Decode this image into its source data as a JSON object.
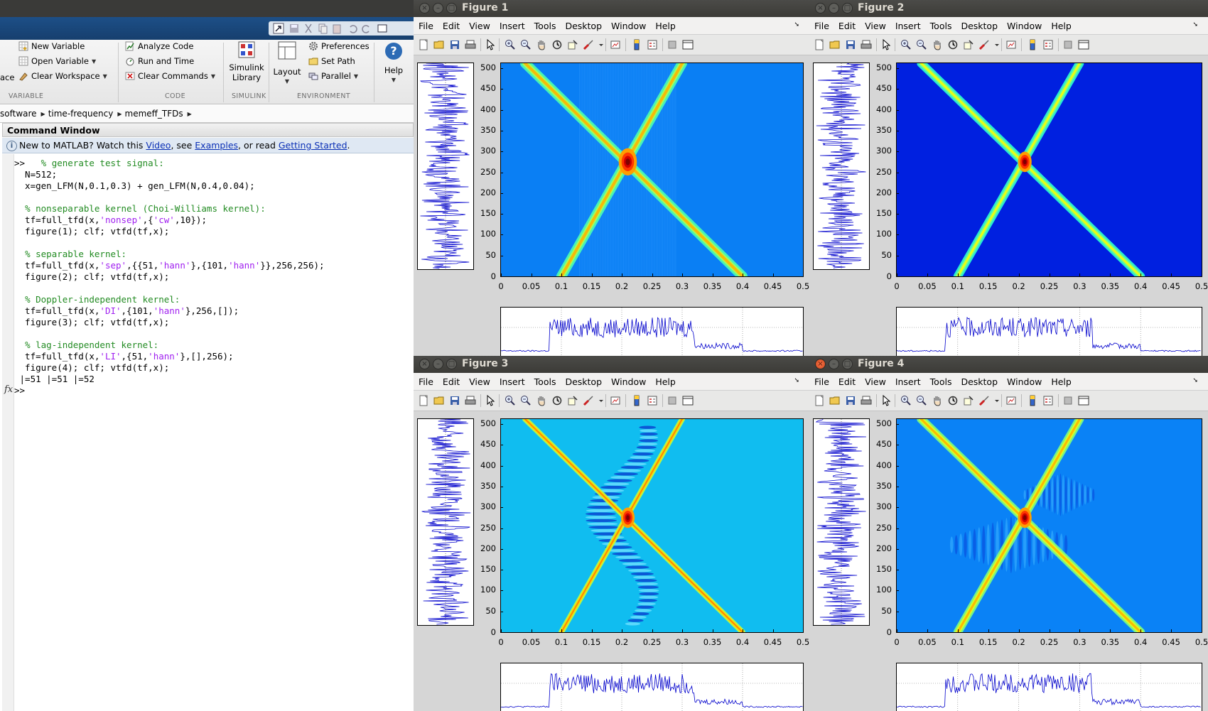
{
  "matlab": {
    "ribbon": {
      "variable": {
        "new_variable": "New Variable",
        "open_variable": "Open Variable",
        "clear_workspace": "Clear Workspace",
        "partial_left": "ace",
        "section": "VARIABLE"
      },
      "code": {
        "analyze_code": "Analyze Code",
        "run_and_time": "Run and Time",
        "clear_commands": "Clear Commands",
        "section": "CODE"
      },
      "simulink": {
        "line1": "Simulink",
        "line2": "Library",
        "section": "SIMULINK"
      },
      "environment": {
        "layout": "Layout",
        "preferences": "Preferences",
        "set_path": "Set Path",
        "parallel": "Parallel",
        "section": "ENVIRONMENT"
      },
      "help": {
        "label": "Help"
      }
    },
    "address": [
      "software",
      "time-frequency",
      "memeff_TFDs"
    ],
    "command_window": {
      "title": "Command Window",
      "info": {
        "prefix": "New to MATLAB? Watch this ",
        "video": "Video",
        "mid1": ", see ",
        "examples": "Examples",
        "mid2": ", or read ",
        "getting_started": "Getting Started",
        "suffix": "."
      },
      "lines": [
        [
          {
            "t": ">>   ",
            "c": ""
          },
          {
            "t": "% generate test signal:",
            "c": "cm"
          }
        ],
        [
          {
            "t": "  N=512;",
            "c": ""
          }
        ],
        [
          {
            "t": "  x=gen_LFM(N,0.1,0.3) + gen_LFM(N,0.4,0.04);",
            "c": ""
          }
        ],
        [
          {
            "t": "",
            "c": ""
          }
        ],
        [
          {
            "t": "  ",
            "c": ""
          },
          {
            "t": "% nonseparable kernel (Choi-Williams kernel):",
            "c": "cm"
          }
        ],
        [
          {
            "t": "  tf=full_tfd(x,",
            "c": ""
          },
          {
            "t": "'nonsep'",
            "c": "st"
          },
          {
            "t": ",{",
            "c": ""
          },
          {
            "t": "'cw'",
            "c": "st"
          },
          {
            "t": ",10});",
            "c": ""
          }
        ],
        [
          {
            "t": "  figure(1); clf; vtfd(tf,x);",
            "c": ""
          }
        ],
        [
          {
            "t": "",
            "c": ""
          }
        ],
        [
          {
            "t": "  ",
            "c": ""
          },
          {
            "t": "% separable kernel:",
            "c": "cm"
          }
        ],
        [
          {
            "t": "  tf=full_tfd(x,",
            "c": ""
          },
          {
            "t": "'sep'",
            "c": "st"
          },
          {
            "t": ",{{51,",
            "c": ""
          },
          {
            "t": "'hann'",
            "c": "st"
          },
          {
            "t": "},{101,",
            "c": ""
          },
          {
            "t": "'hann'",
            "c": "st"
          },
          {
            "t": "}},256,256);",
            "c": ""
          }
        ],
        [
          {
            "t": "  figure(2); clf; vtfd(tf,x);",
            "c": ""
          }
        ],
        [
          {
            "t": "",
            "c": ""
          }
        ],
        [
          {
            "t": "  ",
            "c": ""
          },
          {
            "t": "% Doppler-independent kernel:",
            "c": "cm"
          }
        ],
        [
          {
            "t": "  tf=full_tfd(x,",
            "c": ""
          },
          {
            "t": "'DI'",
            "c": "st"
          },
          {
            "t": ",{101,",
            "c": ""
          },
          {
            "t": "'hann'",
            "c": "st"
          },
          {
            "t": "},256,[]);",
            "c": ""
          }
        ],
        [
          {
            "t": "  figure(3); clf; vtfd(tf,x);",
            "c": ""
          }
        ],
        [
          {
            "t": "",
            "c": ""
          }
        ],
        [
          {
            "t": "  ",
            "c": ""
          },
          {
            "t": "% lag-independent kernel:",
            "c": "cm"
          }
        ],
        [
          {
            "t": "  tf=full_tfd(x,",
            "c": ""
          },
          {
            "t": "'LI'",
            "c": "st"
          },
          {
            "t": ",{51,",
            "c": ""
          },
          {
            "t": "'hann'",
            "c": "st"
          },
          {
            "t": "},[],256);",
            "c": ""
          }
        ],
        [
          {
            "t": "  figure(4); clf; vtfd(tf,x);",
            "c": ""
          }
        ],
        [
          {
            "t": " |=51 |=51 |=52",
            "c": ""
          }
        ],
        [
          {
            "t": ">>",
            "c": ""
          }
        ]
      ],
      "fx_label": "fx"
    }
  },
  "figure_menu": [
    "File",
    "Edit",
    "View",
    "Insert",
    "Tools",
    "Desktop",
    "Window",
    "Help"
  ],
  "figures": [
    {
      "id": 1,
      "title": "Figure 1",
      "active": false,
      "colormap": "jet",
      "background": "#0a7ff4",
      "kernel": "nonseparable (Choi-Williams)"
    },
    {
      "id": 2,
      "title": "Figure 2",
      "active": false,
      "colormap": "jet",
      "background": "#0020e0",
      "kernel": "separable"
    },
    {
      "id": 3,
      "title": "Figure 3",
      "active": false,
      "colormap": "jet",
      "background": "#10bdf0",
      "kernel": "Doppler-independent"
    },
    {
      "id": 4,
      "title": "Figure 4",
      "active": true,
      "colormap": "jet",
      "background": "#0a82f6",
      "kernel": "lag-independent"
    }
  ],
  "chart_data": {
    "type": "heatmap",
    "xlim": [
      0,
      0.5
    ],
    "ylim": [
      0,
      512
    ],
    "x_ticks": [
      "0",
      "0.05",
      "0.1",
      "0.15",
      "0.2",
      "0.25",
      "0.3",
      "0.35",
      "0.4",
      "0.45",
      "0.5"
    ],
    "y_ticks": [
      "50",
      "100",
      "150",
      "200",
      "250",
      "300",
      "350",
      "400",
      "450",
      "500"
    ],
    "y_tick_values": [
      50,
      100,
      150,
      200,
      250,
      300,
      350,
      400,
      450,
      500
    ],
    "components": [
      {
        "name": "LFM 1",
        "f_start": 0.1,
        "f_end": 0.3
      },
      {
        "name": "LFM 2",
        "f_start": 0.4,
        "f_end": 0.04
      }
    ],
    "crossing": {
      "freq": 0.21,
      "time": 275
    }
  },
  "colors": {
    "matlab_titlebar": "#3a3a38",
    "matlab_blue": "#1d4f87",
    "comment": "#228B22",
    "string": "#a020f0",
    "signal": "#0000cc"
  }
}
